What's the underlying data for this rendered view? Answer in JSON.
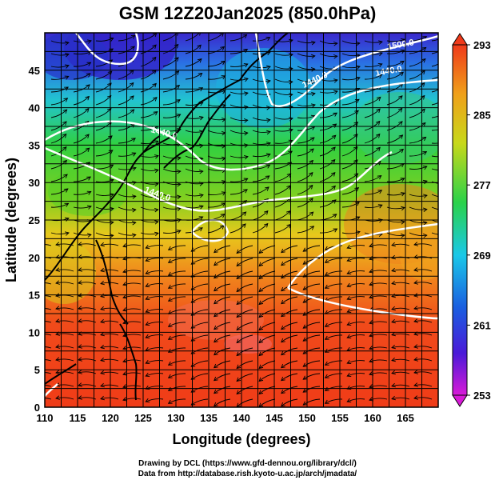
{
  "title": "GSM 12Z20Jan2025 (850.0hPa)",
  "map": {
    "xlabel": "Longitude (degrees)",
    "ylabel": "Latitude  (degrees)",
    "lon_range": [
      110,
      170
    ],
    "lat_range": [
      0,
      50
    ],
    "lon_ticks": [
      "110",
      "115",
      "120",
      "125",
      "130",
      "135",
      "140",
      "145",
      "150",
      "155",
      "160",
      "165"
    ],
    "lat_ticks": [
      "0",
      "5",
      "10",
      "15",
      "20",
      "25",
      "30",
      "35",
      "40",
      "45"
    ],
    "contour_labels": [
      "1440.0",
      "1440.0",
      "1440.0",
      "1500.0",
      "1440.0"
    ],
    "shading_variable": "temperature"
  },
  "colorbar": {
    "ticks": [
      "293",
      "285",
      "277",
      "269",
      "261",
      "253"
    ],
    "range": [
      253,
      293
    ],
    "colors": [
      "#d81ad8",
      "#4a1ad8",
      "#1a5ee0",
      "#1ac8e8",
      "#2ad24a",
      "#c8d81a",
      "#f0a01a",
      "#f03a1a"
    ]
  },
  "credits": {
    "line1": "Drawing by DCL (https://www.gfd-dennou.org/library/dcl/)",
    "line2": "Data from http://database.rish.kyoto-u.ac.jp/arch/jmadata/"
  }
}
